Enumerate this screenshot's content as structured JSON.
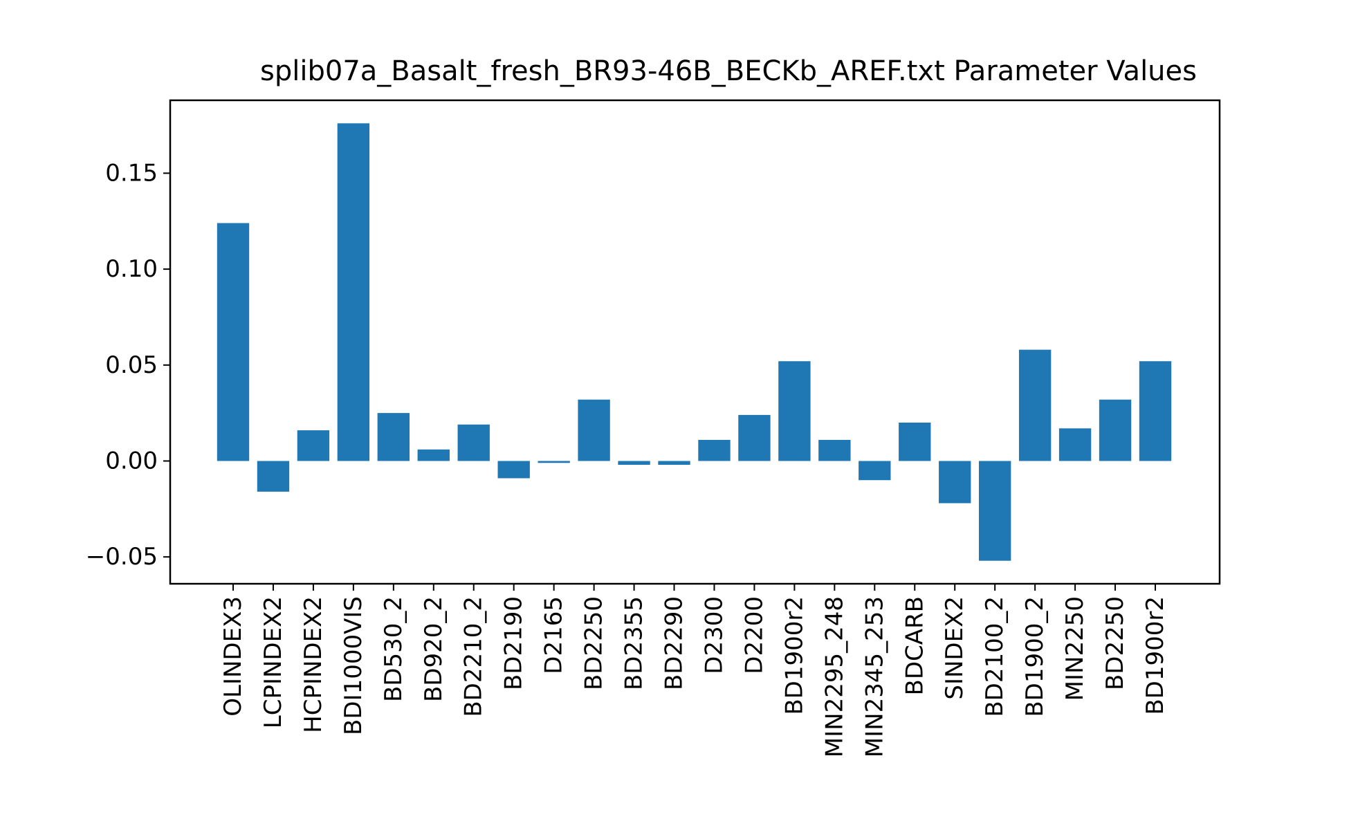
{
  "chart_data": {
    "type": "bar",
    "title": "splib07a_Basalt_fresh_BR93-46B_BECKb_AREF.txt Parameter Values",
    "xlabel": "",
    "ylabel": "",
    "categories": [
      "OLINDEX3",
      "LCPINDEX2",
      "HCPINDEX2",
      "BDI1000VIS",
      "BD530_2",
      "BD920_2",
      "BD2210_2",
      "BD2190",
      "D2165",
      "BD2250",
      "BD2355",
      "BD2290",
      "D2300",
      "D2200",
      "BD1900r2",
      "MIN2295_248",
      "MIN2345_253",
      "BDCARB",
      "SINDEX2",
      "BD2100_2",
      "BD1900_2",
      "MIN2250",
      "BD2250",
      "BD1900r2"
    ],
    "values": [
      0.124,
      -0.016,
      0.016,
      0.176,
      0.025,
      0.006,
      0.019,
      -0.009,
      -0.001,
      0.032,
      -0.002,
      -0.002,
      0.011,
      0.024,
      0.052,
      0.011,
      -0.01,
      0.02,
      -0.022,
      -0.052,
      0.058,
      0.017,
      0.032,
      0.052
    ],
    "ylim": [
      -0.064,
      0.188
    ],
    "yticks": [
      -0.05,
      0.0,
      0.05,
      0.1,
      0.15
    ],
    "ytick_labels": [
      "−0.05",
      "0.00",
      "0.05",
      "0.10",
      "0.15"
    ],
    "bar_color": "#1f77b4",
    "grid": false,
    "legend": "none"
  }
}
